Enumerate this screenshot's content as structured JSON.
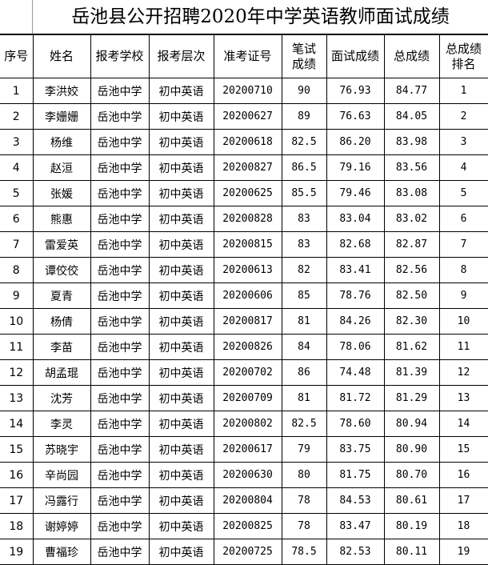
{
  "title": "岳池县公开招聘2020年中学英语教师面试成绩",
  "headers": [
    "序号",
    "姓名",
    "报考学校",
    "报考层次",
    "准考证号",
    "笔试成绩",
    "面试成绩",
    "总成绩",
    "总成绩排名"
  ],
  "rows": [
    [
      "1",
      "李洪姣",
      "岳池中学",
      "初中英语",
      "20200710",
      "90",
      "76.93",
      "84.77",
      "1"
    ],
    [
      "2",
      "李姗姗",
      "岳池中学",
      "初中英语",
      "20200627",
      "89",
      "76.63",
      "84.05",
      "2"
    ],
    [
      "3",
      "杨维",
      "岳池中学",
      "初中英语",
      "20200618",
      "82.5",
      "86.20",
      "83.98",
      "3"
    ],
    [
      "4",
      "赵洹",
      "岳池中学",
      "初中英语",
      "20200827",
      "86.5",
      "79.16",
      "83.56",
      "4"
    ],
    [
      "5",
      "张媛",
      "岳池中学",
      "初中英语",
      "20200625",
      "85.5",
      "79.46",
      "83.08",
      "5"
    ],
    [
      "6",
      "熊惠",
      "岳池中学",
      "初中英语",
      "20200828",
      "83",
      "83.04",
      "83.02",
      "6"
    ],
    [
      "7",
      "雷爱英",
      "岳池中学",
      "初中英语",
      "20200815",
      "83",
      "82.68",
      "82.87",
      "7"
    ],
    [
      "8",
      "谭佼佼",
      "岳池中学",
      "初中英语",
      "20200613",
      "82",
      "83.41",
      "82.56",
      "8"
    ],
    [
      "9",
      "夏青",
      "岳池中学",
      "初中英语",
      "20200606",
      "85",
      "78.76",
      "82.50",
      "9"
    ],
    [
      "10",
      "杨倩",
      "岳池中学",
      "初中英语",
      "20200817",
      "81",
      "84.26",
      "82.30",
      "10"
    ],
    [
      "11",
      "李苗",
      "岳池中学",
      "初中英语",
      "20200826",
      "84",
      "78.06",
      "81.62",
      "11"
    ],
    [
      "12",
      "胡孟琨",
      "岳池中学",
      "初中英语",
      "20200702",
      "86",
      "74.48",
      "81.39",
      "12"
    ],
    [
      "13",
      "沈芳",
      "岳池中学",
      "初中英语",
      "20200709",
      "81",
      "81.72",
      "81.29",
      "13"
    ],
    [
      "14",
      "李灵",
      "岳池中学",
      "初中英语",
      "20200802",
      "82.5",
      "78.60",
      "80.94",
      "14"
    ],
    [
      "15",
      "苏晓宇",
      "岳池中学",
      "初中英语",
      "20200617",
      "79",
      "83.75",
      "80.90",
      "15"
    ],
    [
      "16",
      "辛尚园",
      "岳池中学",
      "初中英语",
      "20200630",
      "80",
      "81.75",
      "80.70",
      "16"
    ],
    [
      "17",
      "冯露行",
      "岳池中学",
      "初中英语",
      "20200804",
      "78",
      "84.53",
      "80.61",
      "17"
    ],
    [
      "18",
      "谢婷婷",
      "岳池中学",
      "初中英语",
      "20200825",
      "78",
      "83.47",
      "80.19",
      "18"
    ],
    [
      "19",
      "曹福珍",
      "岳池中学",
      "初中英语",
      "20200725",
      "78.5",
      "82.53",
      "80.11",
      "19"
    ]
  ]
}
